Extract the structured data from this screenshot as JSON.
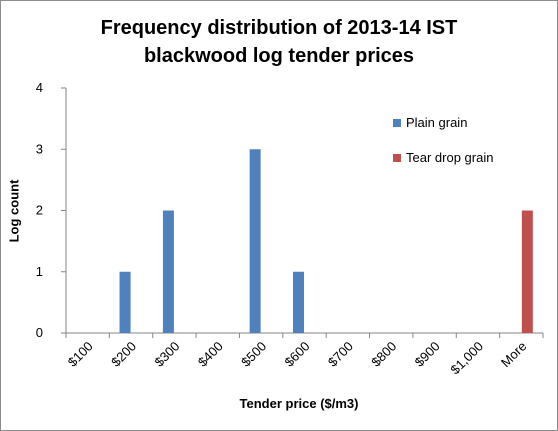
{
  "chart_data": {
    "type": "bar",
    "title_lines": [
      "Frequency distribution of 2013-14 IST",
      "blackwood log tender prices"
    ],
    "xlabel": "Tender price ($/m3)",
    "ylabel": "Log count",
    "categories": [
      "$100",
      "$200",
      "$300",
      "$400",
      "$500",
      "$600",
      "$700",
      "$800",
      "$900",
      "$1,000",
      "More"
    ],
    "ylim": [
      0,
      4
    ],
    "yticks": [
      "0",
      "1",
      "2",
      "3",
      "4"
    ],
    "grid": false,
    "legend_position": "right",
    "series": [
      {
        "name": "Plain grain",
        "color": "#4f81bd",
        "values": [
          0,
          1,
          2,
          0,
          3,
          1,
          0,
          0,
          0,
          0,
          0
        ]
      },
      {
        "name": "Tear drop grain",
        "color": "#c0504d",
        "values": [
          0,
          0,
          0,
          0,
          0,
          0,
          0,
          0,
          0,
          0,
          2
        ]
      }
    ]
  }
}
